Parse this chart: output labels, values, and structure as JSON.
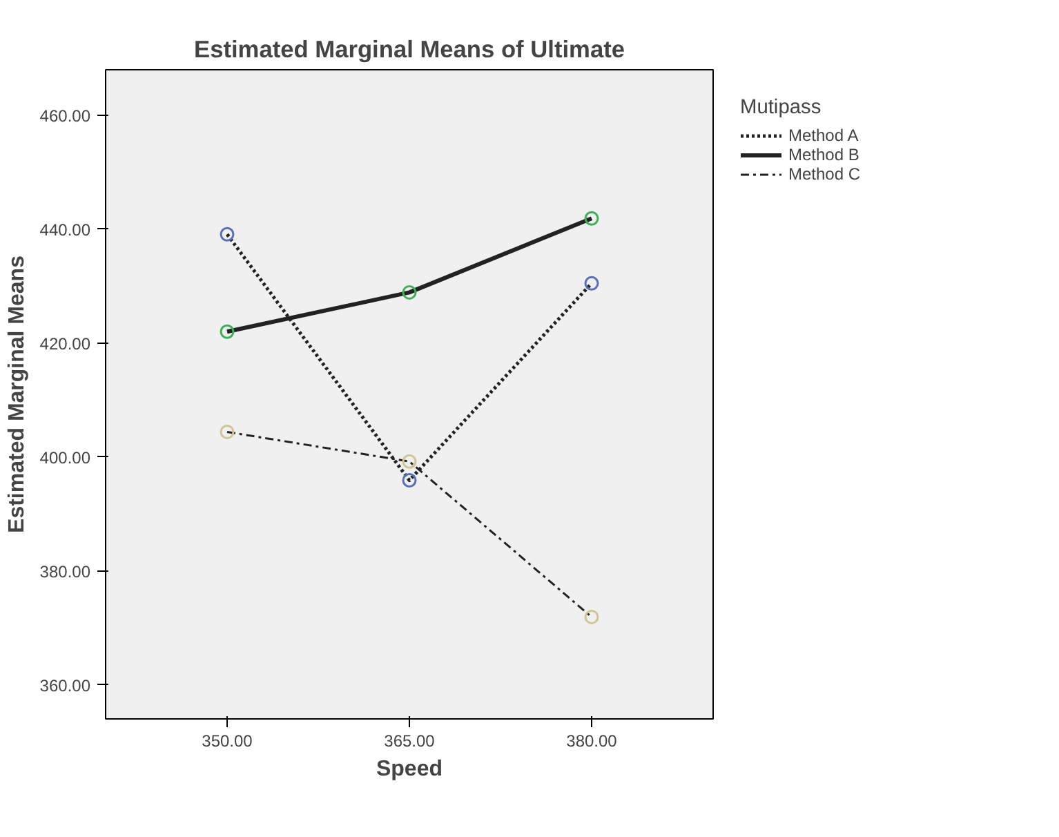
{
  "chart_data": {
    "type": "line",
    "title": "Estimated Marginal Means of Ultimate",
    "xlabel": "Speed",
    "ylabel": "Estimated Marginal Means",
    "legend_title": "Mutipass",
    "legend": "top right",
    "grid": false,
    "marker": "circle",
    "x": [
      350,
      365,
      380
    ],
    "xlim": [
      340,
      390
    ],
    "xticks": [
      {
        "value": 350,
        "label": "350.00"
      },
      {
        "value": 365,
        "label": "365.00"
      },
      {
        "value": 380,
        "label": "380.00"
      }
    ],
    "ylim": [
      354,
      468
    ],
    "yticks": [
      {
        "value": 360,
        "label": "360.00"
      },
      {
        "value": 380,
        "label": "380.00"
      },
      {
        "value": 400,
        "label": "400.00"
      },
      {
        "value": 420,
        "label": "420.00"
      },
      {
        "value": 440,
        "label": "440.00"
      },
      {
        "value": 460,
        "label": "460.00"
      }
    ],
    "series": [
      {
        "name": "Method A",
        "color": "#5a6fb8",
        "line_style": "dotted",
        "values": [
          439.1,
          395.9,
          430.5
        ]
      },
      {
        "name": "Method B",
        "color": "#3fae5a",
        "line_style": "solid",
        "values": [
          422.0,
          428.9,
          441.9
        ]
      },
      {
        "name": "Method C",
        "color": "#cfc596",
        "line_style": "dashed",
        "values": [
          404.4,
          399.2,
          371.9
        ]
      }
    ]
  }
}
